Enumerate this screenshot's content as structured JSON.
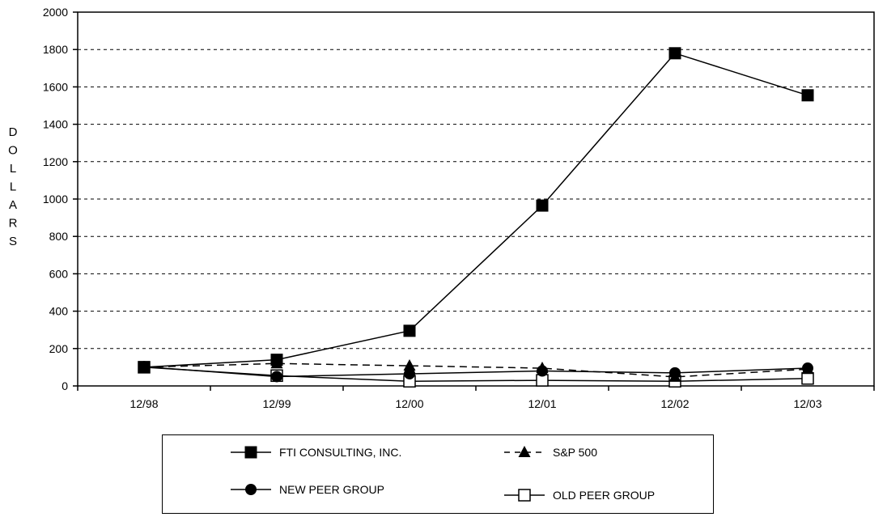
{
  "chart_data": {
    "type": "line",
    "title": "",
    "xlabel": "",
    "ylabel": "DOLLARS",
    "categories": [
      "12/98",
      "12/99",
      "12/00",
      "12/01",
      "12/02",
      "12/03"
    ],
    "ylim": [
      0,
      2000
    ],
    "yticks": [
      0,
      200,
      400,
      600,
      800,
      1000,
      1200,
      1400,
      1600,
      1800,
      2000
    ],
    "grid": "horizontal-dashed",
    "legend_placement": "bottom",
    "series": [
      {
        "name": "FTI CONSULTING, INC.",
        "marker": "filled-square",
        "dash": "solid",
        "values": [
          100,
          140,
          295,
          965,
          1780,
          1555
        ]
      },
      {
        "name": "S&P 500",
        "marker": "filled-triangle",
        "dash": "dashed",
        "values": [
          100,
          120,
          108,
          95,
          48,
          90
        ]
      },
      {
        "name": "NEW PEER GROUP",
        "marker": "filled-circle",
        "dash": "solid",
        "values": [
          103,
          50,
          65,
          80,
          70,
          95
        ]
      },
      {
        "name": "OLD PEER GROUP",
        "marker": "open-square",
        "dash": "solid",
        "values": [
          100,
          55,
          25,
          30,
          25,
          40
        ]
      }
    ]
  }
}
